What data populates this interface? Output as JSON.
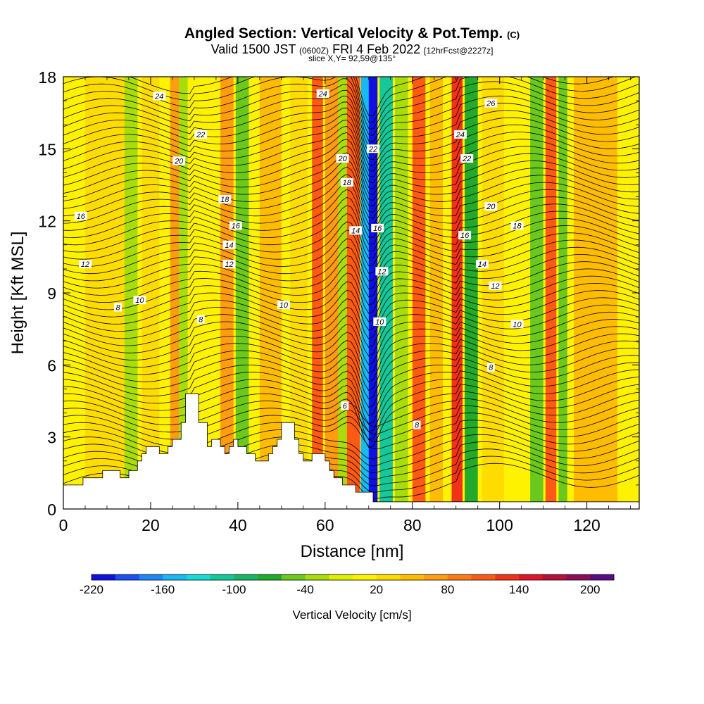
{
  "chart_data": {
    "type": "heatmap",
    "title": "Angled Section: Vertical Velocity & Pot.Temp.",
    "title_tag": "(C)",
    "subtitle_valid": "Valid 1500 JST",
    "subtitle_zulu": "(0600Z)",
    "subtitle_date": "FRI 4 Feb 2022",
    "subtitle_fcst": "[12hrFcst@2227z]",
    "slice_label": "slice X,Y= 92,59@135°",
    "xlabel": "Distance [nm]",
    "ylabel": "Height [Kft MSL]",
    "xlim": [
      0,
      132
    ],
    "ylim": [
      0,
      18
    ],
    "x_ticks": [
      0,
      20,
      40,
      60,
      80,
      100,
      120
    ],
    "y_ticks": [
      0,
      3,
      6,
      9,
      12,
      15,
      18
    ],
    "colorbar": {
      "label": "Vertical Velocity [cm/s]",
      "range": [
        -220,
        220
      ],
      "tick_values": [
        -220,
        -160,
        -100,
        -40,
        20,
        80,
        140,
        200
      ],
      "colors": [
        "#1010e0",
        "#1a4ff0",
        "#1e86f6",
        "#18b8f0",
        "#14dcd8",
        "#14c89a",
        "#1ab464",
        "#24aa2a",
        "#6cc81c",
        "#a8dc0a",
        "#dcf000",
        "#fff200",
        "#ffdc00",
        "#ffbc00",
        "#ff9c10",
        "#ff7a14",
        "#ff5a14",
        "#f03218",
        "#e01428",
        "#b4103c",
        "#8c0c5a",
        "#5a0c82"
      ]
    },
    "velocity_bands": [
      {
        "x": 0,
        "w": 132,
        "v": 0
      },
      {
        "x": 5,
        "w": 12,
        "v": 20
      },
      {
        "x": 14,
        "w": 3,
        "v": -40
      },
      {
        "x": 18,
        "w": 4,
        "v": 25
      },
      {
        "x": 24.5,
        "w": 2,
        "v": 70
      },
      {
        "x": 26.5,
        "w": 2,
        "v": -40
      },
      {
        "x": 36,
        "w": 3,
        "v": 80
      },
      {
        "x": 39.5,
        "w": 3,
        "v": -50
      },
      {
        "x": 45,
        "w": 5,
        "v": 40
      },
      {
        "x": 52,
        "w": 4,
        "v": 30
      },
      {
        "x": 57,
        "w": 2.5,
        "v": 100
      },
      {
        "x": 60,
        "w": 3,
        "v": 60
      },
      {
        "x": 63,
        "w": 2,
        "v": -40
      },
      {
        "x": 65,
        "w": 3,
        "v": 100
      },
      {
        "x": 68.2,
        "w": 3.8,
        "v": -150
      },
      {
        "x": 70,
        "w": 2,
        "v": -210
      },
      {
        "x": 72.5,
        "w": 3,
        "v": -120
      },
      {
        "x": 76,
        "w": 3,
        "v": -40
      },
      {
        "x": 80,
        "w": 3,
        "v": 110
      },
      {
        "x": 84,
        "w": 3,
        "v": 40
      },
      {
        "x": 89,
        "w": 2.5,
        "v": 120
      },
      {
        "x": 92,
        "w": 3,
        "v": -70
      },
      {
        "x": 96,
        "w": 5,
        "v": 30
      },
      {
        "x": 107,
        "w": 3,
        "v": -60
      },
      {
        "x": 110.5,
        "w": 2.5,
        "v": 100
      },
      {
        "x": 113.5,
        "w": 2,
        "v": -50
      },
      {
        "x": 117,
        "w": 10,
        "v": 40
      }
    ],
    "theta_contour_labels": [
      {
        "v": "24",
        "x": 22,
        "y": 17.2
      },
      {
        "v": "22",
        "x": 31.5,
        "y": 15.6
      },
      {
        "v": "20",
        "x": 26.5,
        "y": 14.5
      },
      {
        "v": "18",
        "x": 37,
        "y": 12.9
      },
      {
        "v": "16",
        "x": 4,
        "y": 12.2
      },
      {
        "v": "16",
        "x": 39.5,
        "y": 11.8
      },
      {
        "v": "14",
        "x": 38,
        "y": 11.0
      },
      {
        "v": "12",
        "x": 5,
        "y": 10.2
      },
      {
        "v": "12",
        "x": 38,
        "y": 10.2
      },
      {
        "v": "10",
        "x": 17.5,
        "y": 8.7
      },
      {
        "v": "10",
        "x": 50.5,
        "y": 8.5
      },
      {
        "v": "8",
        "x": 12.5,
        "y": 8.4
      },
      {
        "v": "8",
        "x": 31.5,
        "y": 7.9
      },
      {
        "v": "24",
        "x": 59.5,
        "y": 17.3
      },
      {
        "v": "20",
        "x": 64,
        "y": 14.6
      },
      {
        "v": "18",
        "x": 65,
        "y": 13.6
      },
      {
        "v": "14",
        "x": 67,
        "y": 11.6
      },
      {
        "v": "16",
        "x": 72,
        "y": 11.7
      },
      {
        "v": "22",
        "x": 71,
        "y": 15.0
      },
      {
        "v": "12",
        "x": 73,
        "y": 9.9
      },
      {
        "v": "10",
        "x": 72.5,
        "y": 7.8
      },
      {
        "v": "6",
        "x": 64.5,
        "y": 4.3
      },
      {
        "v": "8",
        "x": 81,
        "y": 3.5
      },
      {
        "v": "26",
        "x": 98,
        "y": 16.9
      },
      {
        "v": "24",
        "x": 91,
        "y": 15.6
      },
      {
        "v": "22",
        "x": 92.5,
        "y": 14.6
      },
      {
        "v": "20",
        "x": 98,
        "y": 12.6
      },
      {
        "v": "18",
        "x": 104,
        "y": 11.8
      },
      {
        "v": "16",
        "x": 92,
        "y": 11.4
      },
      {
        "v": "14",
        "x": 96,
        "y": 10.2
      },
      {
        "v": "12",
        "x": 99,
        "y": 9.3
      },
      {
        "v": "10",
        "x": 104,
        "y": 7.7
      },
      {
        "v": "8",
        "x": 98,
        "y": 5.9
      }
    ],
    "terrain_profile": [
      [
        0,
        1
      ],
      [
        4.5,
        1
      ],
      [
        4.5,
        1.3
      ],
      [
        9,
        1.3
      ],
      [
        9,
        1.6
      ],
      [
        13,
        1.6
      ],
      [
        13,
        1.3
      ],
      [
        15,
        1.3
      ],
      [
        15,
        1.6
      ],
      [
        17,
        1.6
      ],
      [
        17,
        2
      ],
      [
        18,
        2
      ],
      [
        18,
        2.3
      ],
      [
        19,
        2.3
      ],
      [
        19,
        2.6
      ],
      [
        22,
        2.6
      ],
      [
        22,
        2.3
      ],
      [
        24,
        2.3
      ],
      [
        24,
        2.6
      ],
      [
        25,
        2.6
      ],
      [
        25,
        2.9
      ],
      [
        27,
        2.9
      ],
      [
        27,
        3.6
      ],
      [
        28,
        3.6
      ],
      [
        28,
        4.8
      ],
      [
        31,
        4.8
      ],
      [
        31,
        3.6
      ],
      [
        33,
        3.6
      ],
      [
        33,
        2.6
      ],
      [
        34,
        2.6
      ],
      [
        34,
        2.9
      ],
      [
        36,
        2.9
      ],
      [
        36,
        2.6
      ],
      [
        37,
        2.6
      ],
      [
        37,
        2.3
      ],
      [
        38,
        2.3
      ],
      [
        38,
        2.6
      ],
      [
        39,
        2.6
      ],
      [
        39,
        2.9
      ],
      [
        40,
        2.9
      ],
      [
        40,
        2.6
      ],
      [
        42,
        2.6
      ],
      [
        42,
        2.3
      ],
      [
        44,
        2.3
      ],
      [
        44,
        2
      ],
      [
        47,
        2
      ],
      [
        47,
        2.3
      ],
      [
        48,
        2.3
      ],
      [
        48,
        2.6
      ],
      [
        49,
        2.6
      ],
      [
        49,
        2.9
      ],
      [
        50,
        2.9
      ],
      [
        50,
        3.6
      ],
      [
        53,
        3.6
      ],
      [
        53,
        2.9
      ],
      [
        54,
        2.9
      ],
      [
        54,
        2.3
      ],
      [
        55,
        2.3
      ],
      [
        55,
        2
      ],
      [
        57,
        2
      ],
      [
        57,
        2.3
      ],
      [
        60,
        2.3
      ],
      [
        60,
        2
      ],
      [
        61,
        2
      ],
      [
        61,
        1.6
      ],
      [
        62,
        1.6
      ],
      [
        62,
        1.3
      ],
      [
        64,
        1.3
      ],
      [
        64,
        1
      ],
      [
        67,
        1
      ],
      [
        67,
        0.7
      ],
      [
        71,
        0.7
      ],
      [
        71,
        0.3
      ],
      [
        132,
        0.3
      ],
      [
        132,
        0
      ],
      [
        0,
        0
      ]
    ]
  }
}
